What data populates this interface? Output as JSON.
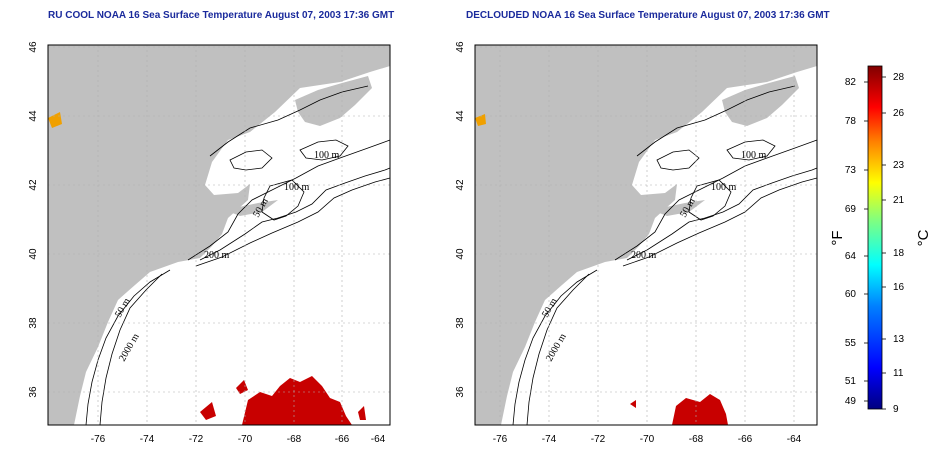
{
  "titles": {
    "left": "RU COOL NOAA 16 Sea Surface Temperature August 07, 2003 17:36 GMT",
    "right": "DECLOUDED NOAA 16 Sea Surface Temperature August 07, 2003 17:36 GMT"
  },
  "axes": {
    "lon_ticks": [
      "-76",
      "-74",
      "-72",
      "-70",
      "-68",
      "-66",
      "-64"
    ],
    "lat_ticks": [
      "46",
      "44",
      "42",
      "40",
      "38",
      "36"
    ]
  },
  "contour_labels": {
    "left": [
      "100 m",
      "100 m",
      "50 m",
      "200 m",
      "50 m",
      "2000 m"
    ],
    "right": [
      "100 m",
      "100 m",
      "50 m",
      "200 m",
      "50 m",
      "2000 m"
    ]
  },
  "colorbar": {
    "fahrenheit_ticks": [
      "82",
      "78",
      "73",
      "69",
      "64",
      "60",
      "55",
      "51",
      "49"
    ],
    "celsius_ticks": [
      "28",
      "26",
      "23",
      "21",
      "18",
      "16",
      "13",
      "11",
      "9"
    ],
    "f_unit": "°F",
    "c_unit": "°C",
    "colors": [
      "#000080",
      "#0000ff",
      "#0080ff",
      "#00ffff",
      "#80ff80",
      "#ffff00",
      "#ff8000",
      "#ff0000",
      "#800000"
    ]
  },
  "colors": {
    "land": "#c0c0c0",
    "ocean": "#ffffff",
    "sst_warm": "#c80000",
    "grid": "#b0b0b0"
  }
}
